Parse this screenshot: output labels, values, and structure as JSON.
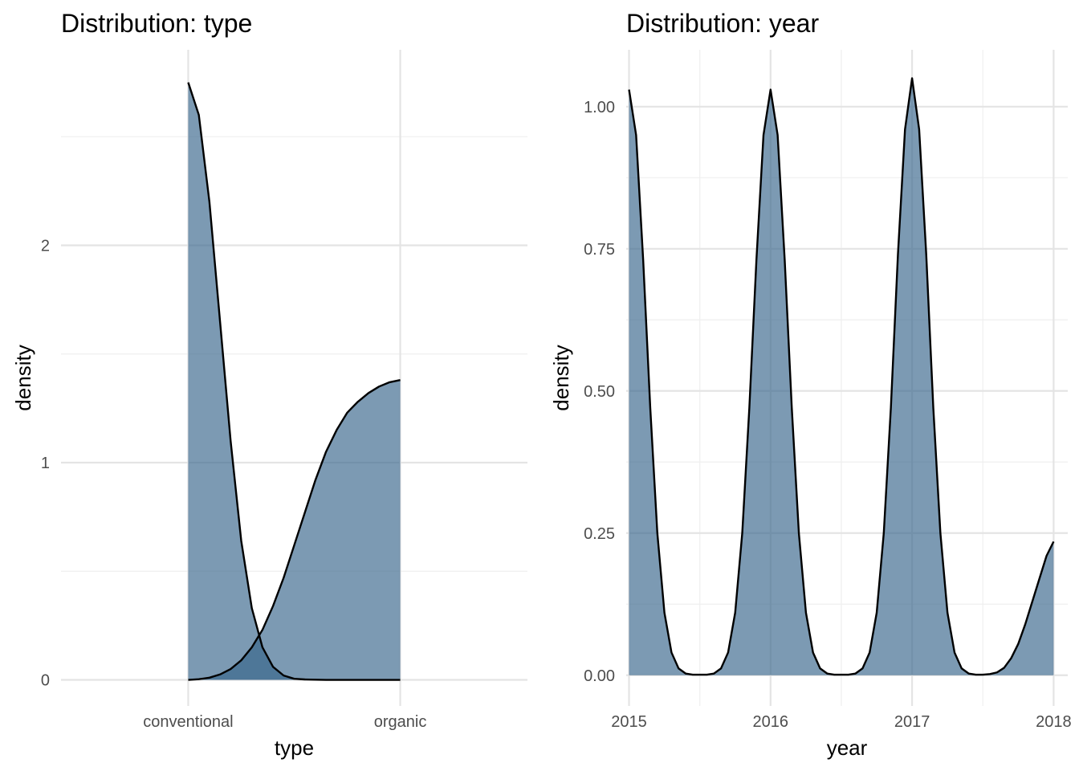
{
  "chart_data": [
    {
      "type": "area",
      "title": "Distribution: type",
      "xlabel": "type",
      "ylabel": "density",
      "categories": [
        "conventional",
        "organic"
      ],
      "xlim": [
        -0.6,
        1.6
      ],
      "ylim": [
        -0.12,
        2.9
      ],
      "yticks": [
        {
          "value": 0,
          "label": "0"
        },
        {
          "value": 1,
          "label": "1"
        },
        {
          "value": 2,
          "label": "2"
        }
      ],
      "grid": true,
      "legend": "none",
      "fill_color": "#36648B",
      "fill_opacity": 0.65,
      "series": [
        {
          "x": [
            0,
            0.05,
            0.1,
            0.15,
            0.2,
            0.25,
            0.3,
            0.35,
            0.4,
            0.45,
            0.5,
            0.55,
            0.6,
            0.65,
            0.7,
            0.75,
            0.8,
            0.85,
            0.9,
            0.95,
            1
          ],
          "y": [
            2.75,
            2.6,
            2.2,
            1.65,
            1.1,
            0.64,
            0.33,
            0.15,
            0.06,
            0.02,
            0.005,
            0.002,
            0.001,
            0,
            0,
            0,
            0,
            0,
            0,
            0,
            0
          ]
        },
        {
          "x": [
            0,
            0.05,
            0.1,
            0.15,
            0.2,
            0.25,
            0.3,
            0.35,
            0.4,
            0.45,
            0.5,
            0.55,
            0.6,
            0.65,
            0.7,
            0.75,
            0.8,
            0.85,
            0.9,
            0.95,
            1
          ],
          "y": [
            0,
            0.003,
            0.01,
            0.025,
            0.05,
            0.09,
            0.15,
            0.23,
            0.34,
            0.47,
            0.62,
            0.77,
            0.92,
            1.05,
            1.15,
            1.23,
            1.28,
            1.32,
            1.35,
            1.37,
            1.38
          ]
        }
      ]
    },
    {
      "type": "area",
      "title": "Distribution: year",
      "xlabel": "year",
      "ylabel": "density",
      "xlim": [
        2014.98,
        2018.1
      ],
      "ylim": [
        -0.054,
        1.1
      ],
      "xticks": [
        {
          "value": 2015,
          "label": "2015"
        },
        {
          "value": 2016,
          "label": "2016"
        },
        {
          "value": 2017,
          "label": "2017"
        },
        {
          "value": 2018,
          "label": "2018"
        }
      ],
      "yticks": [
        {
          "value": 0,
          "label": "0.00"
        },
        {
          "value": 0.25,
          "label": "0.25"
        },
        {
          "value": 0.5,
          "label": "0.50"
        },
        {
          "value": 0.75,
          "label": "0.75"
        },
        {
          "value": 1,
          "label": "1.00"
        }
      ],
      "grid": true,
      "legend": "none",
      "fill_color": "#36648B",
      "fill_opacity": 0.65,
      "series": [
        {
          "x": [
            2015,
            2015.05,
            2015.1,
            2015.15,
            2015.2,
            2015.25,
            2015.3,
            2015.35,
            2015.4,
            2015.45,
            2015.5,
            2015.55,
            2015.6,
            2015.65,
            2015.7,
            2015.75,
            2015.8,
            2015.85,
            2015.9,
            2015.95,
            2016,
            2016.05,
            2016.1,
            2016.15,
            2016.2,
            2016.25,
            2016.3,
            2016.35,
            2016.4,
            2016.45,
            2016.5,
            2016.55,
            2016.6,
            2016.65,
            2016.7,
            2016.75,
            2016.8,
            2016.85,
            2016.9,
            2016.95,
            2017,
            2017.05,
            2017.1,
            2017.15,
            2017.2,
            2017.25,
            2017.3,
            2017.35,
            2017.4,
            2017.45,
            2017.5,
            2017.55,
            2017.6,
            2017.65,
            2017.7,
            2017.75,
            2017.8,
            2017.85,
            2017.9,
            2017.95,
            2018
          ],
          "y": [
            1.03,
            0.95,
            0.73,
            0.47,
            0.25,
            0.11,
            0.04,
            0.012,
            0.003,
            0.001,
            0.001,
            0.001,
            0.003,
            0.012,
            0.04,
            0.11,
            0.25,
            0.47,
            0.73,
            0.95,
            1.03,
            0.95,
            0.73,
            0.47,
            0.25,
            0.11,
            0.04,
            0.012,
            0.003,
            0.001,
            0.001,
            0.001,
            0.003,
            0.012,
            0.04,
            0.11,
            0.25,
            0.47,
            0.74,
            0.96,
            1.05,
            0.96,
            0.74,
            0.47,
            0.25,
            0.11,
            0.04,
            0.012,
            0.003,
            0.001,
            0.001,
            0.002,
            0.005,
            0.013,
            0.03,
            0.055,
            0.09,
            0.13,
            0.17,
            0.21,
            0.235
          ]
        }
      ]
    }
  ]
}
